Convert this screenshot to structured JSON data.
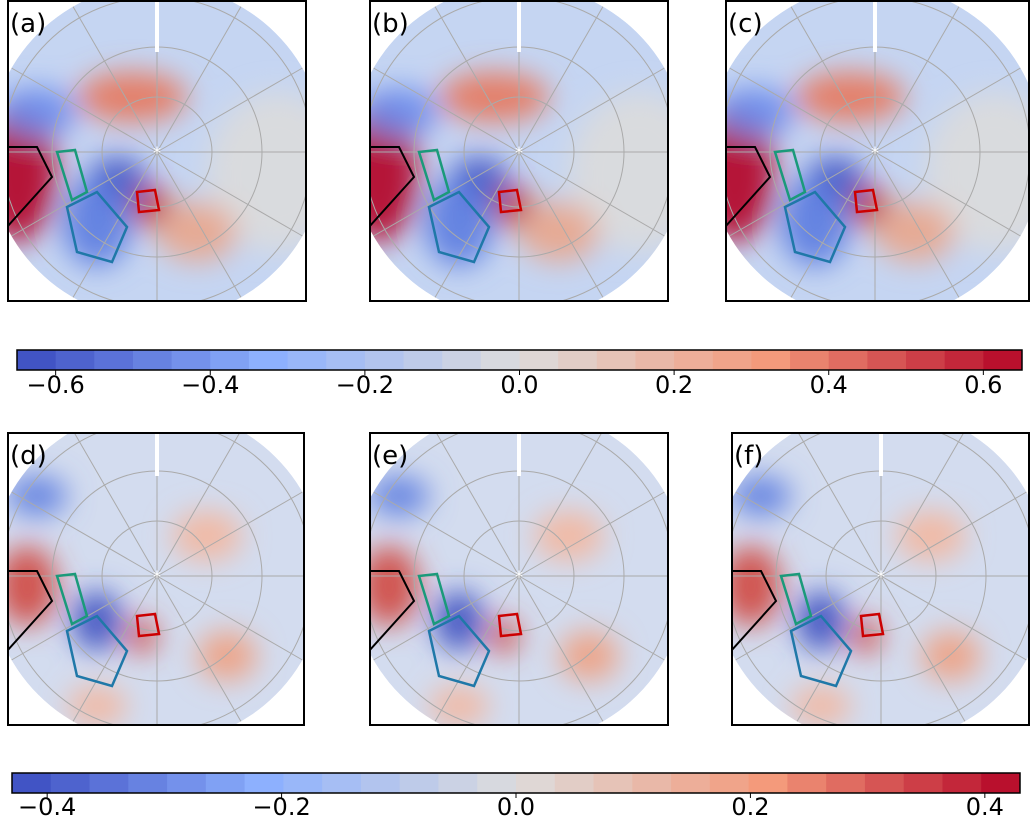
{
  "panels": [
    {
      "label": "(a)"
    },
    {
      "label": "(b)"
    },
    {
      "label": "(c)"
    },
    {
      "label": "(d)"
    },
    {
      "label": "(e)"
    },
    {
      "label": "(f)"
    }
  ],
  "colorbars": [
    {
      "lim": [
        -0.65,
        0.65
      ],
      "levels": 26,
      "colors": [
        "#3b4cc0",
        "#8db0fe",
        "#dddcdc",
        "#f49a7b",
        "#b40426"
      ],
      "ticks": [
        {
          "value": -0.6,
          "label": "−0.6"
        },
        {
          "value": -0.4,
          "label": "−0.4"
        },
        {
          "value": -0.2,
          "label": "−0.2"
        },
        {
          "value": 0,
          "label": "0.0"
        },
        0.2,
        0.4,
        0.6
      ]
    },
    {
      "lim": [
        -0.43,
        0.43
      ],
      "levels": 26,
      "colors": [
        "#3b4cc0",
        "#8db0fe",
        "#dddcdc",
        "#f49a7b",
        "#b40426"
      ],
      "ticks": [
        {
          "value": -0.4,
          "label": "−0.4"
        },
        {
          "value": -0.2,
          "label": "−0.2"
        },
        {
          "value": 0,
          "label": "0.0"
        },
        0.2,
        0.4
      ]
    }
  ]
}
